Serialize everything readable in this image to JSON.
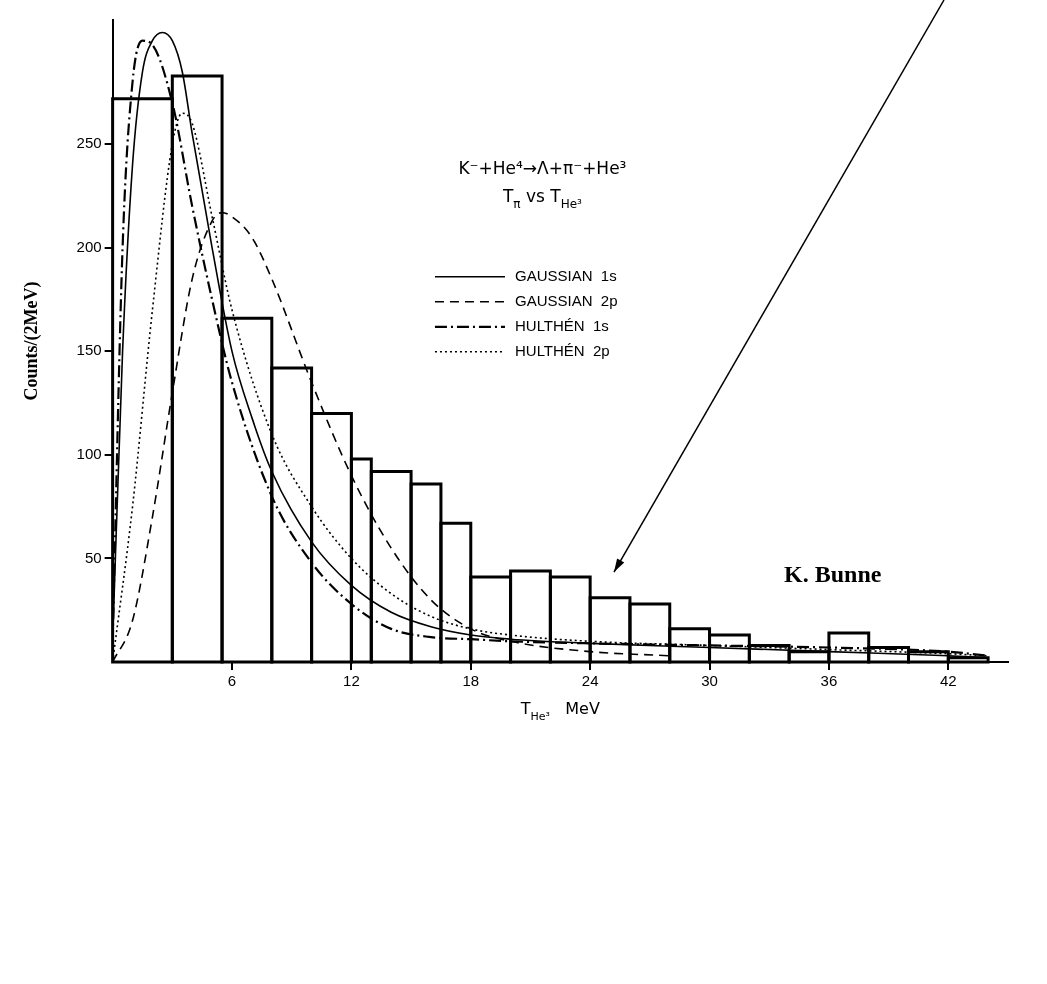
{
  "chart_data": {
    "type": "histogram",
    "xlabel": "T$_{He³}$   MeV",
    "ylabel": "Counts/(2MeV)",
    "bins": [
      0,
      3,
      5.5,
      8,
      10,
      12,
      13,
      15,
      16.5,
      18,
      20,
      22,
      24,
      26,
      28,
      30,
      32,
      34,
      36,
      38,
      40,
      42,
      44
    ],
    "values": [
      272,
      283,
      166,
      142,
      120,
      98,
      92,
      86,
      67,
      41,
      44,
      41,
      31,
      28,
      16,
      13,
      8,
      5,
      14,
      7,
      5,
      2
    ],
    "color": "#000000",
    "series": [
      {
        "type": "line",
        "name": "GAUSSIAN  1s",
        "color": "#000000",
        "line_style": "solid",
        "x": [
          0,
          0.5,
          1,
          1.5,
          2,
          2.5,
          3,
          3.5,
          4,
          5,
          6,
          7,
          8,
          10,
          12,
          14,
          16,
          18,
          20,
          24,
          30,
          36,
          42,
          44
        ],
        "values": [
          10,
          150,
          240,
          285,
          300,
          304,
          300,
          285,
          255,
          200,
          150,
          118,
          92,
          58,
          37,
          24,
          17,
          13,
          11,
          9,
          7,
          5,
          3,
          2
        ]
      },
      {
        "type": "line",
        "name": "GAUSSIAN  2p",
        "color": "#000000",
        "line_style": "dashed",
        "x": [
          0,
          1,
          2,
          3,
          4,
          5,
          5.5,
          6,
          7,
          8,
          10,
          12,
          14,
          16,
          18,
          20,
          24,
          28
        ],
        "values": [
          0,
          20,
          70,
          130,
          185,
          213,
          217,
          215,
          205,
          185,
          135,
          90,
          55,
          30,
          16,
          10,
          5,
          3
        ]
      },
      {
        "type": "line",
        "name": "HULTHÉN  1s",
        "color": "#000000",
        "line_style": "dashdot",
        "x": [
          0,
          0.5,
          1,
          1.5,
          2,
          3,
          4,
          5,
          6,
          8,
          10,
          12,
          14,
          16,
          18,
          20,
          24,
          30,
          36,
          42,
          44
        ],
        "values": [
          10,
          200,
          280,
          300,
          298,
          270,
          220,
          175,
          135,
          80,
          48,
          28,
          16,
          12,
          11,
          10,
          9,
          8,
          7,
          5,
          3
        ]
      },
      {
        "type": "line",
        "name": "HULTHÉN  2p",
        "color": "#000000",
        "line_style": "dotted",
        "x": [
          0,
          1,
          2,
          3,
          3.5,
          4,
          5,
          6,
          8,
          10,
          12,
          14,
          16,
          18,
          20,
          24,
          30,
          36,
          42,
          44
        ],
        "values": [
          0,
          75,
          170,
          250,
          265,
          260,
          215,
          170,
          110,
          75,
          50,
          33,
          22,
          16,
          13,
          10,
          8,
          6,
          4,
          3
        ]
      }
    ],
    "xlim": [
      0,
      45
    ],
    "xticks": [
      6,
      12,
      18,
      24,
      30,
      36,
      42
    ],
    "ylim": [
      0,
      310
    ],
    "yticks": [
      50,
      100,
      150,
      200,
      250
    ],
    "grid": false,
    "legend": "top right",
    "marker": "none",
    "annotations": [
      "K⁻+He⁴→Λ+π⁻+He³",
      "T$_{π}$ vs T$_{He³}$",
      "K. Bunne"
    ]
  }
}
